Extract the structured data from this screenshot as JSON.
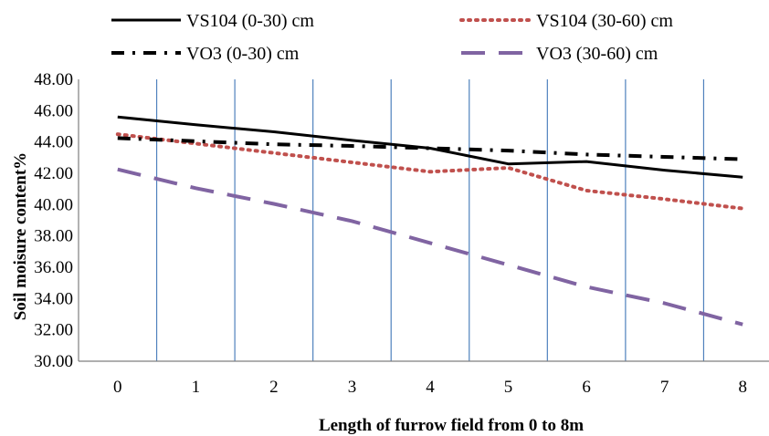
{
  "chart_data": {
    "type": "line",
    "title": "",
    "xlabel": "Length of furrow field from 0  to 8m",
    "ylabel": "Soil moisure content%",
    "x": [
      0,
      1,
      2,
      3,
      4,
      5,
      6,
      7,
      8
    ],
    "x_tick_labels": [
      "0",
      "1",
      "2",
      "3",
      "4",
      "5",
      "6",
      "7",
      "8"
    ],
    "y_tick_labels": [
      "30.00",
      "32.00",
      "34.00",
      "36.00",
      "38.00",
      "40.00",
      "42.00",
      "44.00",
      "46.00",
      "48.00"
    ],
    "ylim": [
      30,
      48
    ],
    "grid": "vertical",
    "legend_position": "top",
    "series": [
      {
        "name": "VS104 (0-30) cm",
        "color": "#000000",
        "style": "solid",
        "values": [
          45.6,
          45.1,
          44.65,
          44.1,
          43.6,
          42.6,
          42.75,
          42.2,
          41.75
        ]
      },
      {
        "name": "VS104 (30-60) cm",
        "color": "#c0504d",
        "style": "dotted",
        "values": [
          44.5,
          43.9,
          43.3,
          42.7,
          42.1,
          42.35,
          40.9,
          40.35,
          39.75
        ]
      },
      {
        "name": "VO3 (0-30) cm",
        "color": "#000000",
        "style": "dashdot",
        "values": [
          44.25,
          44.05,
          43.85,
          43.75,
          43.6,
          43.45,
          43.2,
          43.05,
          42.9
        ]
      },
      {
        "name": "VO3 (30-60) cm",
        "color": "#8064a2",
        "style": "dashed",
        "values": [
          42.25,
          41.05,
          40.05,
          38.95,
          37.55,
          36.15,
          34.75,
          33.7,
          32.35
        ]
      }
    ]
  }
}
